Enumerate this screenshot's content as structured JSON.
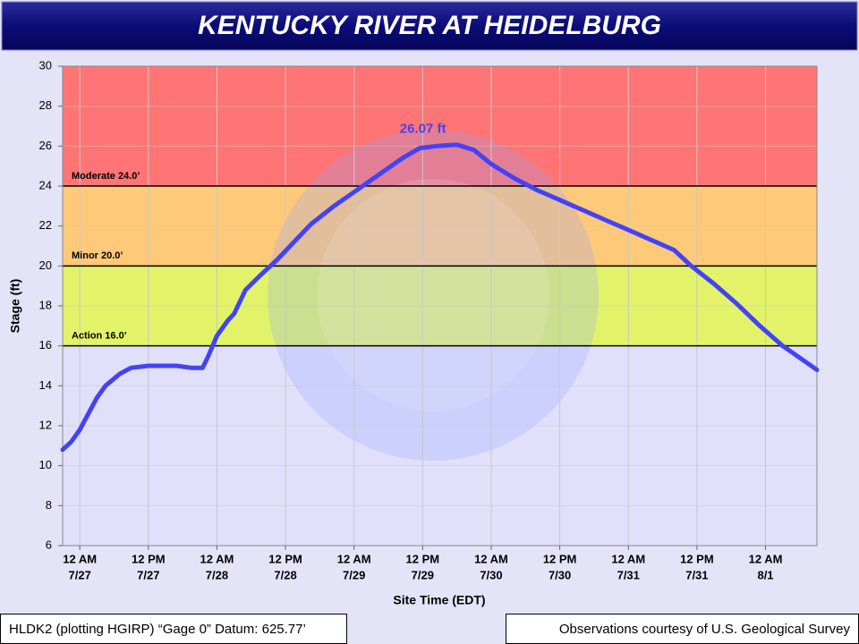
{
  "chart_data": {
    "type": "line",
    "title": "KENTUCKY RIVER AT HEIDELBURG",
    "ylabel": "Stage (ft)",
    "xlabel": "Site Time (EDT)",
    "footer_left": "HLDK2 (plotting HGIRP) “Gage 0” Datum: 625.77’",
    "footer_right": "Observations courtesy of U.S. Geological Survey",
    "color": "#4343f5",
    "x": [
      "7/26 21:00",
      "7/26 22:30",
      "7/27 00:00",
      "7/27 01:30",
      "7/27 03:00",
      "7/27 04:30",
      "7/27 07:00",
      "7/27 09:00",
      "7/27 12:00",
      "7/27 14:00",
      "7/27 17:00",
      "7/27 19:30",
      "7/27 21:30",
      "7/27 22:30",
      "7/28 00:00",
      "7/28 02:00",
      "7/28 03:00",
      "7/28 05:00",
      "7/28 07:30",
      "7/28 10:30",
      "7/28 13:30",
      "7/28 16:30",
      "7/28 20:30",
      "7/29 00:30",
      "7/29 04:30",
      "7/29 08:30",
      "7/29 11:30",
      "7/29 14:30",
      "7/29 18:00",
      "7/29 21:00",
      "7/30 00:00",
      "7/30 04:00",
      "7/30 08:00",
      "7/30 12:00",
      "7/30 16:00",
      "7/30 20:00",
      "7/31 00:00",
      "7/31 04:00",
      "7/31 08:00",
      "7/31 11:00",
      "7/31 15:00",
      "7/31 19:00",
      "7/31 23:00",
      "8/1 03:00",
      "8/1 07:00",
      "8/1 09:00"
    ],
    "values": [
      10.8,
      11.2,
      11.8,
      12.6,
      13.4,
      14.0,
      14.6,
      14.9,
      15.0,
      15.0,
      15.0,
      14.9,
      14.9,
      15.5,
      16.5,
      17.3,
      17.6,
      18.8,
      19.5,
      20.3,
      21.2,
      22.1,
      23.0,
      23.8,
      24.6,
      25.4,
      25.9,
      26.0,
      26.07,
      25.8,
      25.1,
      24.4,
      23.8,
      23.3,
      22.8,
      22.3,
      21.8,
      21.3,
      20.8,
      20.0,
      19.1,
      18.1,
      17.0,
      16.0,
      15.2,
      14.8
    ],
    "peak": {
      "x": "7/29 18:00",
      "value": 26.07,
      "label": "26.07 ft",
      "color": "#4343f5"
    },
    "stages": [
      {
        "label": "Action 16.0’",
        "value": 16,
        "color": "#e2f36a"
      },
      {
        "label": "Minor 20.0’",
        "value": 20,
        "color": "#ffc97a"
      },
      {
        "label": "Moderate 24.0’",
        "value": 24,
        "color": "#ff7474"
      }
    ],
    "xlim": [
      "7/26 21:00",
      "8/1 09:00"
    ],
    "xticks": [
      {
        "value": "7/27 00:00",
        "label": [
          "12 AM",
          "7/27"
        ]
      },
      {
        "value": "7/27 12:00",
        "label": [
          "12 PM",
          "7/27"
        ]
      },
      {
        "value": "7/28 00:00",
        "label": [
          "12 AM",
          "7/28"
        ]
      },
      {
        "value": "7/28 12:00",
        "label": [
          "12 PM",
          "7/28"
        ]
      },
      {
        "value": "7/29 00:00",
        "label": [
          "12 AM",
          "7/29"
        ]
      },
      {
        "value": "7/29 12:00",
        "label": [
          "12 PM",
          "7/29"
        ]
      },
      {
        "value": "7/30 00:00",
        "label": [
          "12 AM",
          "7/30"
        ]
      },
      {
        "value": "7/30 12:00",
        "label": [
          "12 PM",
          "7/30"
        ]
      },
      {
        "value": "7/31 00:00",
        "label": [
          "12 AM",
          "7/31"
        ]
      },
      {
        "value": "7/31 12:00",
        "label": [
          "12 PM",
          "7/31"
        ]
      },
      {
        "value": "8/1 00:00",
        "label": [
          "12 AM",
          "8/1"
        ]
      }
    ],
    "ylim": [
      6,
      30
    ],
    "yticks": [
      6,
      8,
      10,
      12,
      14,
      16,
      18,
      20,
      22,
      24,
      26,
      28,
      30
    ],
    "grid": true
  }
}
